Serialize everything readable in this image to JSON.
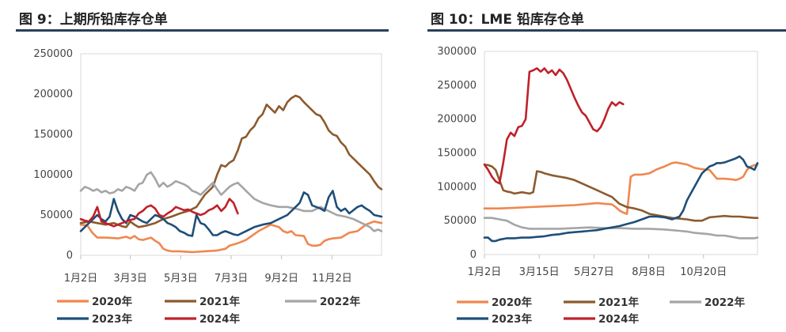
{
  "chart_data": [
    {
      "type": "line",
      "title": "图 9：上期所铅库存仓单",
      "xlabel": "",
      "ylabel": "",
      "ylim": [
        0,
        250000
      ],
      "yticks": [
        "0",
        "50000",
        "100000",
        "150000",
        "200000",
        "250000"
      ],
      "xticks": [
        "1月2日",
        "3月3日",
        "5月3日",
        "7月3日",
        "9月2日",
        "11月2日"
      ],
      "xtick_days": [
        0,
        60,
        121,
        182,
        243,
        304
      ],
      "xlim": [
        0,
        364
      ],
      "legend": [
        "2020年",
        "2021年",
        "2022年",
        "2023年",
        "2024年"
      ],
      "series": [
        {
          "name": "2020年",
          "color": "#f0874f",
          "x": [
            0,
            8,
            14,
            20,
            30,
            45,
            55,
            60,
            65,
            70,
            75,
            85,
            90,
            95,
            100,
            105,
            110,
            120,
            135,
            150,
            165,
            175,
            180,
            190,
            200,
            215,
            230,
            240,
            245,
            250,
            255,
            260,
            270,
            275,
            280,
            285,
            290,
            295,
            300,
            305,
            315,
            325,
            335,
            345,
            355,
            364
          ],
          "y": [
            38000,
            37000,
            28000,
            22000,
            22000,
            21000,
            23000,
            21000,
            24000,
            20000,
            19000,
            22000,
            18000,
            15000,
            8000,
            6000,
            5000,
            5000,
            4000,
            5000,
            6000,
            8000,
            12000,
            15000,
            19000,
            30000,
            38000,
            35000,
            30000,
            28000,
            30000,
            25000,
            24000,
            14000,
            12000,
            12000,
            13000,
            18000,
            20000,
            21000,
            22000,
            28000,
            30000,
            38000,
            42000,
            40000
          ]
        },
        {
          "name": "2021年",
          "color": "#8c5a2e",
          "x": [
            0,
            10,
            20,
            30,
            40,
            50,
            55,
            60,
            65,
            70,
            80,
            90,
            100,
            110,
            120,
            130,
            140,
            150,
            160,
            165,
            170,
            175,
            180,
            185,
            190,
            195,
            200,
            205,
            210,
            215,
            220,
            225,
            230,
            235,
            240,
            245,
            250,
            255,
            260,
            265,
            270,
            275,
            280,
            285,
            290,
            295,
            300,
            305,
            310,
            315,
            320,
            325,
            330,
            335,
            340,
            345,
            350,
            355,
            360,
            364
          ],
          "y": [
            40000,
            42000,
            40000,
            38000,
            40000,
            36000,
            35000,
            42000,
            38000,
            35000,
            37000,
            40000,
            45000,
            48000,
            52000,
            55000,
            60000,
            75000,
            85000,
            100000,
            112000,
            110000,
            115000,
            118000,
            130000,
            145000,
            147000,
            155000,
            160000,
            170000,
            175000,
            187000,
            182000,
            177000,
            185000,
            180000,
            190000,
            195000,
            198000,
            196000,
            190000,
            185000,
            180000,
            175000,
            173000,
            165000,
            155000,
            150000,
            148000,
            140000,
            135000,
            125000,
            120000,
            115000,
            110000,
            105000,
            100000,
            92000,
            85000,
            82000
          ]
        },
        {
          "name": "2022年",
          "color": "#a5a5a5",
          "x": [
            0,
            5,
            10,
            15,
            20,
            25,
            30,
            35,
            40,
            45,
            50,
            55,
            60,
            65,
            70,
            75,
            80,
            85,
            90,
            95,
            100,
            105,
            110,
            115,
            120,
            125,
            130,
            135,
            140,
            145,
            150,
            155,
            160,
            165,
            170,
            175,
            180,
            185,
            190,
            195,
            200,
            205,
            210,
            220,
            230,
            240,
            250,
            260,
            270,
            280,
            290,
            300,
            310,
            320,
            330,
            340,
            350,
            355,
            360,
            364
          ],
          "y": [
            80000,
            85000,
            83000,
            80000,
            82000,
            78000,
            80000,
            77000,
            78000,
            82000,
            80000,
            85000,
            83000,
            80000,
            88000,
            90000,
            100000,
            103000,
            95000,
            85000,
            90000,
            85000,
            88000,
            92000,
            90000,
            88000,
            85000,
            80000,
            78000,
            75000,
            80000,
            85000,
            90000,
            82000,
            75000,
            80000,
            85000,
            88000,
            90000,
            85000,
            80000,
            75000,
            70000,
            65000,
            62000,
            60000,
            60000,
            58000,
            55000,
            55000,
            60000,
            55000,
            50000,
            48000,
            45000,
            40000,
            35000,
            30000,
            32000,
            30000
          ]
        },
        {
          "name": "2023年",
          "color": "#1f4e79",
          "x": [
            0,
            5,
            10,
            15,
            20,
            25,
            30,
            35,
            40,
            45,
            50,
            55,
            60,
            65,
            70,
            75,
            80,
            85,
            90,
            95,
            100,
            105,
            110,
            115,
            120,
            125,
            130,
            135,
            140,
            145,
            150,
            155,
            160,
            165,
            170,
            175,
            180,
            185,
            190,
            200,
            210,
            220,
            230,
            240,
            250,
            260,
            265,
            270,
            275,
            280,
            285,
            290,
            295,
            300,
            305,
            310,
            315,
            320,
            325,
            330,
            335,
            340,
            345,
            350,
            355,
            364
          ],
          "y": [
            30000,
            35000,
            40000,
            45000,
            50000,
            45000,
            42000,
            48000,
            70000,
            55000,
            45000,
            40000,
            50000,
            48000,
            45000,
            42000,
            40000,
            45000,
            50000,
            48000,
            45000,
            40000,
            38000,
            35000,
            30000,
            28000,
            25000,
            24000,
            50000,
            40000,
            38000,
            32000,
            25000,
            25000,
            28000,
            30000,
            28000,
            26000,
            25000,
            30000,
            35000,
            38000,
            40000,
            45000,
            50000,
            60000,
            65000,
            78000,
            75000,
            62000,
            60000,
            58000,
            55000,
            72000,
            80000,
            60000,
            55000,
            58000,
            52000,
            56000,
            60000,
            62000,
            58000,
            55000,
            50000,
            48000
          ]
        },
        {
          "name": "2024年",
          "color": "#c0202a",
          "x": [
            0,
            5,
            10,
            15,
            20,
            25,
            30,
            35,
            40,
            45,
            50,
            55,
            60,
            65,
            70,
            75,
            80,
            85,
            90,
            95,
            100,
            105,
            110,
            115,
            120,
            125,
            130,
            135,
            140,
            145,
            150,
            155,
            160,
            165,
            170,
            175,
            180,
            185,
            190
          ],
          "y": [
            45000,
            43000,
            42000,
            48000,
            60000,
            42000,
            40000,
            38000,
            36000,
            38000,
            40000,
            42000,
            44000,
            45000,
            52000,
            55000,
            60000,
            62000,
            58000,
            50000,
            48000,
            52000,
            55000,
            60000,
            58000,
            56000,
            57000,
            54000,
            52000,
            50000,
            52000,
            56000,
            58000,
            62000,
            55000,
            60000,
            70000,
            65000,
            52000
          ]
        }
      ]
    },
    {
      "type": "line",
      "title": "图 10：LME 铅库存仓单",
      "xlabel": "",
      "ylabel": "",
      "ylim": [
        0,
        300000
      ],
      "yticks": [
        "0",
        "50000",
        "100000",
        "150000",
        "200000",
        "250000",
        "300000"
      ],
      "xticks": [
        "1月2日",
        "3月15日",
        "5月27日",
        "8月8日",
        "10月20日"
      ],
      "xtick_days": [
        0,
        73,
        146,
        219,
        292
      ],
      "xlim": [
        0,
        364
      ],
      "legend": [
        "2020年",
        "2021年",
        "2022年",
        "2023年",
        "2024年"
      ],
      "series": [
        {
          "name": "2020年",
          "color": "#f0874f",
          "x": [
            0,
            20,
            40,
            60,
            80,
            100,
            120,
            140,
            150,
            160,
            170,
            175,
            180,
            185,
            190,
            195,
            200,
            210,
            220,
            230,
            240,
            250,
            255,
            260,
            270,
            280,
            290,
            300,
            310,
            320,
            330,
            335,
            340,
            345,
            350,
            355,
            360,
            364
          ],
          "y": [
            68000,
            68000,
            69000,
            70000,
            71000,
            72000,
            73000,
            75000,
            76000,
            75000,
            74000,
            70000,
            65000,
            62000,
            60000,
            115000,
            118000,
            118000,
            120000,
            126000,
            130000,
            135000,
            136000,
            135000,
            133000,
            128000,
            126000,
            125000,
            112000,
            112000,
            111000,
            110000,
            112000,
            115000,
            125000,
            130000,
            132000,
            133000
          ]
        },
        {
          "name": "2021年",
          "color": "#8c5a2e",
          "x": [
            0,
            5,
            10,
            15,
            20,
            25,
            30,
            35,
            40,
            50,
            60,
            65,
            70,
            75,
            80,
            90,
            100,
            110,
            120,
            130,
            140,
            150,
            160,
            170,
            180,
            190,
            200,
            210,
            220,
            230,
            240,
            250,
            260,
            270,
            280,
            290,
            300,
            310,
            320,
            330,
            340,
            350,
            360,
            364
          ],
          "y": [
            133000,
            132000,
            130000,
            125000,
            110000,
            95000,
            93000,
            92000,
            90000,
            92000,
            90000,
            92000,
            123000,
            122000,
            120000,
            117000,
            115000,
            113000,
            110000,
            105000,
            100000,
            95000,
            90000,
            85000,
            75000,
            70000,
            68000,
            65000,
            60000,
            58000,
            56000,
            54000,
            53000,
            52000,
            50000,
            50000,
            55000,
            56000,
            57000,
            56000,
            56000,
            55000,
            54000,
            54000
          ]
        },
        {
          "name": "2022年",
          "color": "#a5a5a5",
          "x": [
            0,
            10,
            20,
            30,
            40,
            50,
            60,
            70,
            80,
            90,
            100,
            120,
            140,
            160,
            180,
            200,
            220,
            240,
            260,
            270,
            280,
            290,
            300,
            310,
            320,
            330,
            340,
            350,
            360,
            364
          ],
          "y": [
            54000,
            54000,
            52000,
            50000,
            44000,
            40000,
            38000,
            38000,
            38000,
            38000,
            38000,
            39000,
            40000,
            39000,
            39000,
            38000,
            38000,
            37000,
            35000,
            34000,
            32000,
            31000,
            30000,
            28000,
            28000,
            26000,
            24000,
            24000,
            24000,
            25000
          ]
        },
        {
          "name": "2023年",
          "color": "#1f4e79",
          "x": [
            0,
            5,
            10,
            15,
            20,
            30,
            40,
            50,
            60,
            70,
            80,
            90,
            100,
            110,
            120,
            130,
            140,
            150,
            160,
            170,
            180,
            190,
            200,
            210,
            220,
            230,
            240,
            250,
            260,
            265,
            270,
            275,
            280,
            285,
            290,
            295,
            300,
            305,
            310,
            315,
            320,
            325,
            330,
            335,
            340,
            345,
            350,
            355,
            360,
            364
          ],
          "y": [
            25000,
            25000,
            20000,
            20000,
            22000,
            24000,
            24000,
            25000,
            25000,
            26000,
            27000,
            29000,
            30000,
            32000,
            33000,
            34000,
            35000,
            36000,
            38000,
            40000,
            42000,
            45000,
            48000,
            52000,
            56000,
            56000,
            55000,
            52000,
            56000,
            65000,
            80000,
            90000,
            100000,
            110000,
            120000,
            125000,
            130000,
            132000,
            135000,
            135000,
            136000,
            138000,
            140000,
            142000,
            145000,
            140000,
            130000,
            128000,
            125000,
            135000
          ]
        },
        {
          "name": "2024年",
          "color": "#c0202a",
          "x": [
            0,
            5,
            10,
            15,
            20,
            25,
            30,
            35,
            40,
            45,
            50,
            55,
            60,
            65,
            70,
            75,
            80,
            85,
            90,
            95,
            100,
            105,
            110,
            115,
            120,
            125,
            130,
            135,
            140,
            145,
            150,
            155,
            160,
            165,
            170,
            175,
            180,
            185
          ],
          "y": [
            133000,
            125000,
            115000,
            108000,
            105000,
            135000,
            170000,
            180000,
            175000,
            188000,
            190000,
            200000,
            270000,
            272000,
            275000,
            270000,
            275000,
            268000,
            272000,
            265000,
            273000,
            268000,
            258000,
            245000,
            232000,
            220000,
            210000,
            205000,
            195000,
            185000,
            182000,
            188000,
            200000,
            215000,
            225000,
            220000,
            225000,
            222000
          ]
        }
      ]
    }
  ]
}
